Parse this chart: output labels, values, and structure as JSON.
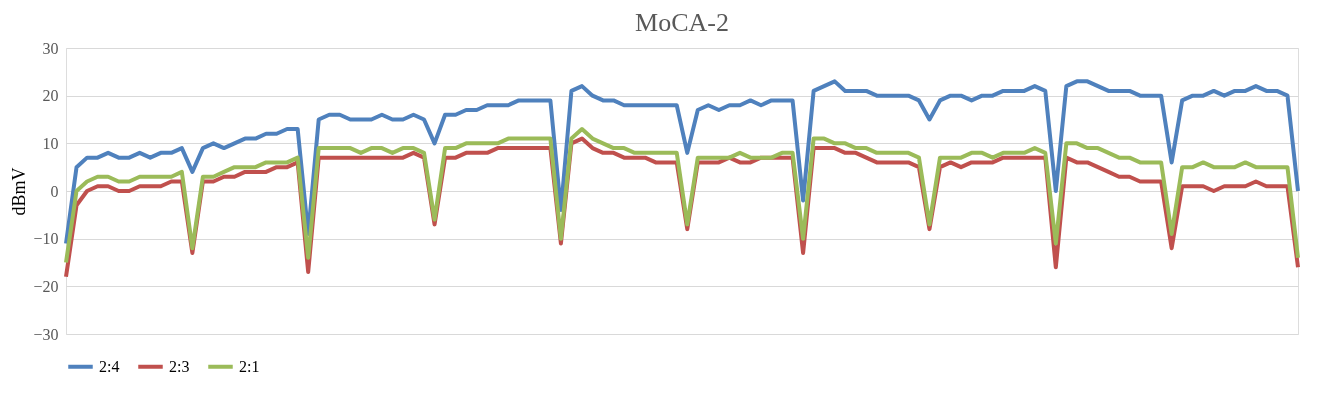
{
  "chart_data": {
    "type": "line",
    "title": "MoCA-2",
    "ylabel": "dBmV",
    "categories": [
      null,
      null,
      null,
      null,
      null,
      null,
      null,
      null,
      null,
      null,
      null,
      null,
      null,
      null,
      null,
      null,
      null,
      null,
      null,
      null,
      null,
      null,
      null,
      null,
      null,
      null,
      null,
      null,
      null,
      null,
      null,
      null,
      null,
      null,
      null,
      null,
      null,
      null,
      null,
      null,
      null,
      null,
      null,
      null,
      null,
      null,
      null,
      null,
      null,
      null,
      null,
      null,
      null,
      null,
      null,
      null,
      null,
      null,
      null,
      null,
      null,
      null,
      null,
      null,
      null,
      null,
      null,
      null,
      null,
      null,
      null,
      null,
      null,
      null,
      null,
      null,
      null,
      null,
      null,
      null,
      null,
      null,
      null,
      null,
      null,
      null,
      null,
      null,
      null,
      null,
      null,
      null,
      null,
      null,
      null,
      null,
      null,
      null,
      null,
      null,
      null,
      null,
      null,
      null,
      null,
      null,
      null,
      null,
      null,
      null,
      null,
      null,
      null,
      null,
      null,
      null,
      null,
      null
    ],
    "series": [
      {
        "name": "2:4",
        "color": "#4f81bd",
        "values": [
          -11,
          5,
          7,
          7,
          8,
          7,
          7,
          8,
          7,
          8,
          8,
          9,
          4,
          9,
          10,
          9,
          10,
          11,
          11,
          12,
          12,
          13,
          13,
          -9,
          15,
          16,
          16,
          15,
          15,
          15,
          16,
          15,
          15,
          16,
          15,
          10,
          16,
          16,
          17,
          17,
          18,
          18,
          18,
          19,
          19,
          19,
          19,
          -4,
          21,
          22,
          20,
          19,
          19,
          18,
          18,
          18,
          18,
          18,
          18,
          8,
          17,
          18,
          17,
          18,
          18,
          19,
          18,
          19,
          19,
          19,
          -2,
          21,
          22,
          23,
          21,
          21,
          21,
          20,
          20,
          20,
          20,
          19,
          15,
          19,
          20,
          20,
          19,
          20,
          20,
          21,
          21,
          21,
          22,
          21,
          0,
          22,
          23,
          23,
          22,
          21,
          21,
          21,
          20,
          20,
          20,
          6,
          19,
          20,
          20,
          21,
          20,
          21,
          21,
          22,
          21,
          21,
          20,
          0
        ]
      },
      {
        "name": "2:3",
        "color": "#c0504d",
        "values": [
          -18,
          -3,
          0,
          1,
          1,
          0,
          0,
          1,
          1,
          1,
          2,
          2,
          -13,
          2,
          2,
          3,
          3,
          4,
          4,
          4,
          5,
          5,
          6,
          -17,
          7,
          7,
          7,
          7,
          7,
          7,
          7,
          7,
          7,
          8,
          7,
          -7,
          7,
          7,
          8,
          8,
          8,
          9,
          9,
          9,
          9,
          9,
          9,
          -11,
          10,
          11,
          9,
          8,
          8,
          7,
          7,
          7,
          6,
          6,
          6,
          -8,
          6,
          6,
          6,
          7,
          6,
          6,
          7,
          7,
          7,
          7,
          -13,
          9,
          9,
          9,
          8,
          8,
          7,
          6,
          6,
          6,
          6,
          5,
          -8,
          5,
          6,
          5,
          6,
          6,
          6,
          7,
          7,
          7,
          7,
          7,
          -16,
          7,
          6,
          6,
          5,
          4,
          3,
          3,
          2,
          2,
          2,
          -12,
          1,
          1,
          1,
          0,
          1,
          1,
          1,
          2,
          1,
          1,
          1,
          -16
        ]
      },
      {
        "name": "2:1",
        "color": "#9bbb59",
        "values": [
          -15,
          0,
          2,
          3,
          3,
          2,
          2,
          3,
          3,
          3,
          3,
          4,
          -12,
          3,
          3,
          4,
          5,
          5,
          5,
          6,
          6,
          6,
          7,
          -14,
          9,
          9,
          9,
          9,
          8,
          9,
          9,
          8,
          9,
          9,
          8,
          -6,
          9,
          9,
          10,
          10,
          10,
          10,
          11,
          11,
          11,
          11,
          11,
          -10,
          11,
          13,
          11,
          10,
          9,
          9,
          8,
          8,
          8,
          8,
          8,
          -7,
          7,
          7,
          7,
          7,
          8,
          7,
          7,
          7,
          8,
          8,
          -10,
          11,
          11,
          10,
          10,
          9,
          9,
          8,
          8,
          8,
          8,
          7,
          -7,
          7,
          7,
          7,
          8,
          8,
          7,
          8,
          8,
          8,
          9,
          8,
          -11,
          10,
          10,
          9,
          9,
          8,
          7,
          7,
          6,
          6,
          6,
          -9,
          5,
          5,
          6,
          5,
          5,
          5,
          6,
          5,
          5,
          5,
          5,
          -14
        ]
      }
    ],
    "ylim": [
      -30,
      30
    ],
    "yticks": [
      -30,
      -20,
      -10,
      0,
      10,
      20,
      30
    ],
    "grid": "y",
    "legend": "bottom",
    "tick_labels": "y",
    "marker": "none",
    "line_style": "solid"
  }
}
